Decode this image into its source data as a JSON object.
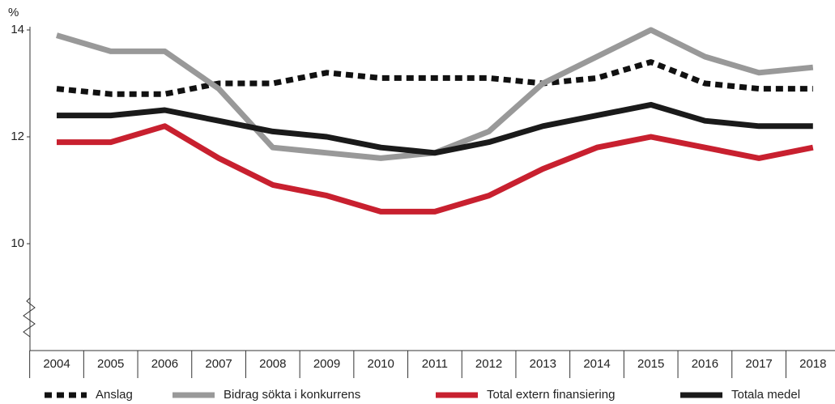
{
  "chart_data": {
    "type": "line",
    "ylabel": "%",
    "categories": [
      "2004",
      "2005",
      "2006",
      "2007",
      "2008",
      "2009",
      "2010",
      "2011",
      "2012",
      "2013",
      "2014",
      "2015",
      "2016",
      "2017",
      "2018"
    ],
    "ylim": [
      8,
      14
    ],
    "yticks": [
      10,
      12,
      14
    ],
    "series": [
      {
        "name": "Anslag",
        "color": "#111111",
        "dashed": true,
        "values": [
          12.9,
          12.8,
          12.8,
          13.0,
          13.0,
          13.2,
          13.1,
          13.1,
          13.1,
          13.0,
          13.1,
          13.4,
          13.0,
          12.9,
          12.9
        ]
      },
      {
        "name": "Bidrag sökta i konkurrens",
        "color": "#999999",
        "dashed": false,
        "values": [
          13.9,
          13.6,
          13.6,
          12.9,
          11.8,
          11.7,
          11.6,
          11.7,
          12.1,
          13.0,
          13.5,
          14.0,
          13.5,
          13.2,
          13.3
        ]
      },
      {
        "name": "Total extern  finansiering",
        "color": "#c8202f",
        "dashed": false,
        "values": [
          11.9,
          11.9,
          12.2,
          11.6,
          11.1,
          10.9,
          10.6,
          10.6,
          10.9,
          11.4,
          11.8,
          12.0,
          11.8,
          11.6,
          11.8
        ]
      },
      {
        "name": "Totala medel",
        "color": "#1a1a1a",
        "dashed": false,
        "values": [
          12.4,
          12.4,
          12.5,
          12.3,
          12.1,
          12.0,
          11.8,
          11.7,
          11.9,
          12.2,
          12.4,
          12.6,
          12.3,
          12.2,
          12.2
        ]
      }
    ]
  }
}
